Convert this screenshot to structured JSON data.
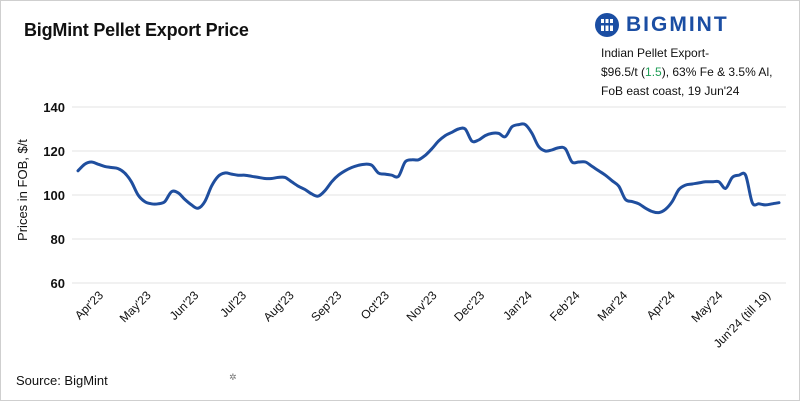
{
  "title": "BigMint Pellet Export Price",
  "brand": {
    "name": "BIGMINT",
    "color": "#1b4ea3"
  },
  "annotation": {
    "line1": "Indian Pellet Export-",
    "price": "$96.5/t (",
    "change": "1.5",
    "price_after": "), 63% Fe & 3.5% Al,",
    "line3": "FoB east coast,  19 Jun'24",
    "change_color": "#1f9d55"
  },
  "source": "Source: BigMint",
  "chart_data": {
    "type": "line",
    "ylabel": "Prices in FOB, $/t",
    "ylim": [
      60,
      140
    ],
    "yticks": [
      60,
      80,
      100,
      120,
      140
    ],
    "grid": true,
    "line_color": "#1f4e9e",
    "xticks": [
      "Apr'23",
      "May'23",
      "Jun'23",
      "Jul'23",
      "Aug'23",
      "Sep'23",
      "Oct'23",
      "Nov'23",
      "Dec'23",
      "Jan'24",
      "Feb'24",
      "Mar'24",
      "Apr'24",
      "May'24",
      "Jun'24 (till 19)"
    ],
    "series": [
      {
        "values": [
          111,
          114,
          115,
          114,
          113,
          112.5,
          112,
          110,
          106,
          100,
          97,
          96,
          96,
          97,
          101.5,
          101,
          98,
          95.5,
          94,
          97,
          104,
          108.5,
          110,
          109.5,
          109,
          109,
          108.5,
          108,
          107.5,
          107.5,
          108,
          108,
          106,
          104,
          102.5,
          100.5,
          99.5,
          102,
          106,
          109,
          111,
          112.5,
          113.5,
          114,
          113.5,
          110,
          109.5,
          109,
          108.5,
          115,
          116,
          116,
          118,
          121,
          124.5,
          127,
          128.5,
          130,
          130,
          124.5,
          125,
          127,
          128,
          128,
          126.5,
          131,
          132,
          132,
          128,
          122,
          120,
          120.5,
          121.5,
          121,
          115,
          115,
          115,
          113,
          111,
          109,
          106.5,
          104,
          98,
          97,
          96,
          94,
          92.5,
          92,
          93.5,
          97,
          102.5,
          104.5,
          105,
          105.5,
          106,
          106,
          106,
          103,
          108,
          109,
          109,
          96.5,
          96,
          95.5,
          96,
          96.5
        ]
      }
    ]
  }
}
